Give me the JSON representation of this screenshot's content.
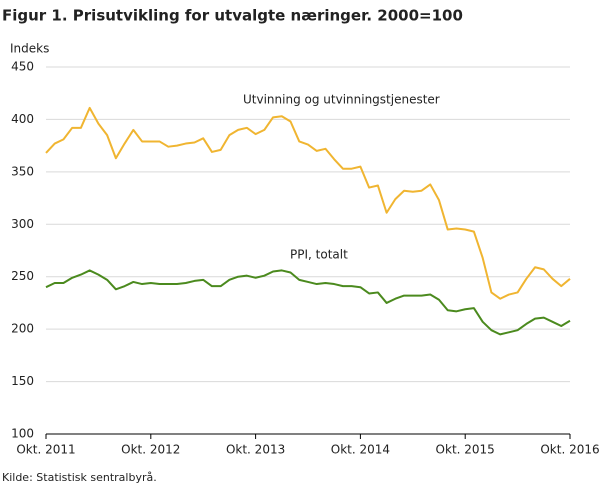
{
  "chart_data": {
    "type": "line",
    "title": "Figur 1. Prisutvikling for utvalgte næringer. 2000=100",
    "y_label": "Indeks",
    "source": "Kilde: Statistisk sentralbyrå.",
    "categories": [
      "Okt. 2011",
      null,
      null,
      null,
      null,
      null,
      null,
      null,
      null,
      null,
      null,
      null,
      "Okt. 2012",
      null,
      null,
      null,
      null,
      null,
      null,
      null,
      null,
      null,
      null,
      null,
      "Okt. 2013",
      null,
      null,
      null,
      null,
      null,
      null,
      null,
      null,
      null,
      null,
      null,
      "Okt. 2014",
      null,
      null,
      null,
      null,
      null,
      null,
      null,
      null,
      null,
      null,
      null,
      "Okt. 2015",
      null,
      null,
      null,
      null,
      null,
      null,
      null,
      null,
      null,
      null,
      null,
      "Okt. 2016"
    ],
    "series": [
      {
        "name": "Utvinning og utvinningstjenester",
        "color": "#f0b531",
        "values": [
          368,
          377,
          381,
          392,
          392,
          411,
          396,
          385,
          363,
          377,
          390,
          379,
          379,
          379,
          374,
          375,
          377,
          378,
          382,
          369,
          371,
          385,
          390,
          392,
          386,
          390,
          402,
          403,
          398,
          379,
          376,
          370,
          372,
          362,
          353,
          353,
          355,
          335,
          337,
          311,
          324,
          332,
          331,
          332,
          338,
          323,
          295,
          296,
          295,
          293,
          268,
          235,
          229,
          233,
          235,
          248,
          259,
          257,
          248,
          241,
          248
        ]
      },
      {
        "name": "PPI, totalt",
        "color": "#4b8a1e",
        "values": [
          240,
          244,
          244,
          249,
          252,
          256,
          252,
          247,
          238,
          241,
          245,
          243,
          244,
          243,
          243,
          243,
          244,
          246,
          247,
          241,
          241,
          247,
          250,
          251,
          249,
          251,
          255,
          256,
          254,
          247,
          245,
          243,
          244,
          243,
          241,
          241,
          240,
          234,
          235,
          225,
          229,
          232,
          232,
          232,
          233,
          228,
          218,
          217,
          219,
          220,
          207,
          199,
          195,
          197,
          199,
          205,
          210,
          211,
          207,
          203,
          208
        ]
      }
    ],
    "ylim": [
      100,
      450
    ],
    "yticks": [
      100,
      150,
      200,
      250,
      300,
      350,
      400,
      450
    ],
    "grid": true
  }
}
